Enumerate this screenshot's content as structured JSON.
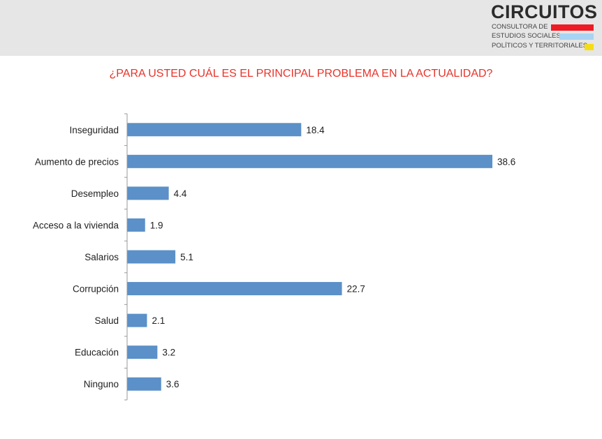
{
  "logo": {
    "name": "CIRCUITOS",
    "line1": "CONSULTORA DE",
    "line2": "ESTUDIOS SOCIALES,",
    "line3": "POLÍTICOS Y TERRITORIALES",
    "colors": [
      "#ee1b24",
      "#a9d3f2",
      "#f5dd16"
    ]
  },
  "colors": {
    "header_background": "#e6e6e6",
    "title": "#e8332a",
    "bar": "#5b90c8",
    "axis": "#999999",
    "text": "#222222"
  },
  "chart_data": {
    "type": "bar",
    "orientation": "horizontal",
    "title": "¿PARA USTED CUÁL ES EL PRINCIPAL PROBLEMA EN LA ACTUALIDAD?",
    "xlabel": "",
    "ylabel": "",
    "categories": [
      "Inseguridad",
      "Aumento de precios",
      "Desempleo",
      "Acceso a la vivienda",
      "Salarios",
      "Corrupción",
      "Salud",
      "Educación",
      "Ninguno"
    ],
    "values": [
      18.4,
      38.6,
      4.4,
      1.9,
      5.1,
      22.7,
      2.1,
      3.2,
      3.6
    ],
    "data_labels": [
      "18.4",
      "38.6",
      "4.4",
      "1.9",
      "5.1",
      "22.7",
      "2.1",
      "3.2",
      "3.6"
    ],
    "xlim": [
      0,
      40
    ],
    "grid": false,
    "legend": "none"
  }
}
